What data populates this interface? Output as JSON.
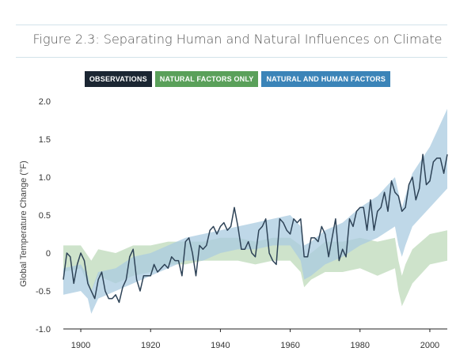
{
  "header": {
    "title": "Figure 2.3: Separating Human and Natural Influences on Climate"
  },
  "legend": {
    "items": [
      {
        "label": "OBSERVATIONS",
        "color": "#1b2632"
      },
      {
        "label": "NATURAL FACTORS ONLY",
        "color": "#5aa05a"
      },
      {
        "label": "NATURAL AND HUMAN FACTORS",
        "color": "#3b84b8"
      }
    ]
  },
  "chart_data": {
    "type": "line",
    "title": "Figure 2.3: Separating Human and Natural Influences on Climate",
    "xlabel": "",
    "ylabel": "Global Temperature Change (°F)",
    "xlim": [
      1895,
      2005
    ],
    "ylim": [
      -1.0,
      2.0
    ],
    "x_ticks": [
      "1900",
      "1920",
      "1940",
      "1960",
      "1980",
      "2000"
    ],
    "y_ticks": [
      "2.0",
      "1.5",
      "1.0",
      "0.5",
      "0",
      "-0.5",
      "-1.0"
    ],
    "grid": false,
    "series": [
      {
        "name": "OBSERVATIONS",
        "kind": "line",
        "color": "#2e4357",
        "x": [
          1895,
          1896,
          1897,
          1898,
          1899,
          1900,
          1901,
          1902,
          1903,
          1904,
          1905,
          1906,
          1907,
          1908,
          1909,
          1910,
          1911,
          1912,
          1913,
          1914,
          1915,
          1916,
          1917,
          1918,
          1919,
          1920,
          1921,
          1922,
          1923,
          1924,
          1925,
          1926,
          1927,
          1928,
          1929,
          1930,
          1931,
          1932,
          1933,
          1934,
          1935,
          1936,
          1937,
          1938,
          1939,
          1940,
          1941,
          1942,
          1943,
          1944,
          1945,
          1946,
          1947,
          1948,
          1949,
          1950,
          1951,
          1952,
          1953,
          1954,
          1955,
          1956,
          1957,
          1958,
          1959,
          1960,
          1961,
          1962,
          1963,
          1964,
          1965,
          1966,
          1967,
          1968,
          1969,
          1970,
          1971,
          1972,
          1973,
          1974,
          1975,
          1976,
          1977,
          1978,
          1979,
          1980,
          1981,
          1982,
          1983,
          1984,
          1985,
          1986,
          1987,
          1988,
          1989,
          1990,
          1991,
          1992,
          1993,
          1994,
          1995,
          1996,
          1997,
          1998,
          1999,
          2000,
          2001,
          2002,
          2003,
          2004,
          2005
        ],
        "y": [
          -0.35,
          0.0,
          -0.05,
          -0.4,
          -0.15,
          0.0,
          -0.1,
          -0.4,
          -0.5,
          -0.6,
          -0.35,
          -0.25,
          -0.5,
          -0.6,
          -0.6,
          -0.55,
          -0.65,
          -0.45,
          -0.35,
          -0.05,
          0.05,
          -0.35,
          -0.5,
          -0.3,
          -0.3,
          -0.3,
          -0.15,
          -0.25,
          -0.2,
          -0.15,
          -0.2,
          -0.05,
          -0.1,
          -0.1,
          -0.3,
          0.15,
          0.2,
          0.0,
          -0.3,
          0.1,
          0.05,
          0.1,
          0.3,
          0.35,
          0.25,
          0.35,
          0.4,
          0.3,
          0.35,
          0.6,
          0.35,
          0.05,
          0.05,
          0.15,
          0.0,
          -0.05,
          0.3,
          0.35,
          0.45,
          0.0,
          -0.1,
          -0.15,
          0.45,
          0.4,
          0.3,
          0.25,
          0.45,
          0.4,
          0.45,
          -0.05,
          -0.05,
          0.2,
          0.2,
          0.15,
          0.35,
          0.25,
          -0.05,
          0.2,
          0.45,
          -0.1,
          0.05,
          -0.05,
          0.45,
          0.35,
          0.55,
          0.6,
          0.6,
          0.3,
          0.7,
          0.3,
          0.55,
          0.6,
          0.8,
          0.55,
          0.95,
          0.8,
          0.75,
          0.55,
          0.6,
          0.9,
          1.0,
          0.7,
          0.85,
          1.3,
          0.9,
          0.95,
          1.2,
          1.25,
          1.25,
          1.05,
          1.3
        ]
      },
      {
        "name": "NATURAL FACTORS ONLY",
        "kind": "band",
        "color": "#bdd9b9",
        "x": [
          1895,
          1900,
          1903,
          1905,
          1910,
          1915,
          1920,
          1925,
          1930,
          1935,
          1940,
          1945,
          1950,
          1955,
          1960,
          1963,
          1964,
          1966,
          1970,
          1975,
          1980,
          1985,
          1990,
          1991,
          1992,
          1993,
          1995,
          2000,
          2005
        ],
        "lower": [
          -0.25,
          -0.2,
          -0.5,
          -0.3,
          -0.4,
          -0.3,
          -0.25,
          -0.15,
          -0.15,
          -0.1,
          -0.1,
          -0.1,
          -0.15,
          -0.1,
          -0.1,
          -0.25,
          -0.45,
          -0.35,
          -0.25,
          -0.25,
          -0.2,
          -0.3,
          -0.2,
          -0.5,
          -0.7,
          -0.6,
          -0.4,
          -0.15,
          -0.1
        ],
        "upper": [
          0.1,
          0.1,
          -0.1,
          0.05,
          0.0,
          0.1,
          0.1,
          0.15,
          0.15,
          0.15,
          0.2,
          0.2,
          0.15,
          0.2,
          0.2,
          0.1,
          -0.05,
          0.0,
          0.15,
          0.15,
          0.2,
          0.15,
          0.2,
          -0.1,
          -0.3,
          -0.15,
          0.05,
          0.25,
          0.3
        ]
      },
      {
        "name": "NATURAL AND HUMAN FACTORS",
        "kind": "band",
        "color": "#a9cbe0",
        "x": [
          1895,
          1900,
          1902,
          1903,
          1905,
          1910,
          1915,
          1920,
          1925,
          1930,
          1935,
          1940,
          1945,
          1950,
          1955,
          1960,
          1963,
          1964,
          1966,
          1970,
          1975,
          1980,
          1985,
          1990,
          1991,
          1992,
          1993,
          1995,
          2000,
          2005
        ],
        "lower": [
          -0.55,
          -0.5,
          -0.6,
          -0.8,
          -0.6,
          -0.5,
          -0.4,
          -0.3,
          -0.2,
          -0.1,
          -0.1,
          0.0,
          0.05,
          0.05,
          0.1,
          0.1,
          -0.1,
          -0.35,
          -0.3,
          -0.15,
          -0.05,
          0.1,
          0.2,
          0.35,
          0.1,
          -0.05,
          0.1,
          0.35,
          0.6,
          0.85
        ],
        "upper": [
          -0.2,
          -0.15,
          -0.3,
          -0.5,
          -0.25,
          -0.2,
          -0.05,
          0.0,
          0.1,
          0.2,
          0.25,
          0.3,
          0.35,
          0.4,
          0.45,
          0.5,
          0.35,
          0.1,
          0.15,
          0.3,
          0.4,
          0.6,
          0.75,
          1.0,
          0.8,
          0.6,
          0.75,
          1.05,
          1.4,
          1.9
        ]
      }
    ]
  }
}
